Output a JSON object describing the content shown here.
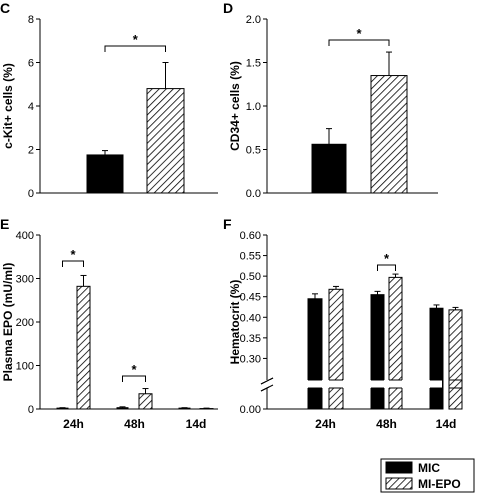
{
  "chart_data": [
    {
      "panel": "C",
      "type": "bar",
      "ylabel": "c-Kit+ cells (%)",
      "ylim": [
        0,
        8
      ],
      "yticks": [
        "0",
        "2",
        "4",
        "6",
        "8"
      ],
      "series": [
        {
          "name": "MIC",
          "values": [
            1.75
          ],
          "errors": [
            0.2
          ]
        },
        {
          "name": "MI-EPO",
          "values": [
            4.8
          ],
          "errors": [
            1.2
          ]
        }
      ],
      "significance": [
        {
          "label": "*"
        }
      ]
    },
    {
      "panel": "D",
      "type": "bar",
      "ylabel": "CD34+ cells (%)",
      "ylim": [
        0,
        2.0
      ],
      "yticks": [
        "0.0",
        "0.5",
        "1.0",
        "1.5",
        "2.0"
      ],
      "series": [
        {
          "name": "MIC",
          "values": [
            0.56
          ],
          "errors": [
            0.18
          ]
        },
        {
          "name": "MI-EPO",
          "values": [
            1.35
          ],
          "errors": [
            0.27
          ]
        }
      ],
      "significance": [
        {
          "label": "*"
        }
      ]
    },
    {
      "panel": "E",
      "type": "bar",
      "ylabel": "Plasma EPO (mU/ml)",
      "ylim": [
        0,
        400
      ],
      "yticks": [
        "0",
        "100",
        "200",
        "300",
        "400"
      ],
      "categories": [
        "24h",
        "48h",
        "14d"
      ],
      "series": [
        {
          "name": "MIC",
          "values": [
            2,
            3,
            2
          ],
          "errors": [
            1,
            2,
            1
          ]
        },
        {
          "name": "MI-EPO",
          "values": [
            282,
            35,
            1
          ],
          "errors": [
            25,
            12,
            1
          ]
        }
      ],
      "significance": [
        {
          "category": "24h",
          "label": "*"
        },
        {
          "category": "48h",
          "label": "*"
        }
      ]
    },
    {
      "panel": "F",
      "type": "bar",
      "ylabel": "Hematocrit (%)",
      "ylim": [
        0,
        0.6
      ],
      "axis_break": [
        0.0,
        0.25
      ],
      "yticks": [
        "0.00",
        "0.30",
        "0.35",
        "0.40",
        "0.45",
        "0.50",
        "0.55",
        "0.60"
      ],
      "categories": [
        "24h",
        "48h",
        "14d"
      ],
      "series": [
        {
          "name": "MIC",
          "values": [
            0.445,
            0.455,
            0.422
          ],
          "errors": [
            0.012,
            0.008,
            0.008
          ]
        },
        {
          "name": "MI-EPO",
          "values": [
            0.468,
            0.497,
            0.418
          ],
          "errors": [
            0.007,
            0.008,
            0.006
          ]
        }
      ],
      "significance": [
        {
          "category": "48h",
          "label": "*"
        }
      ]
    }
  ],
  "legend": {
    "placement": "bottom-right",
    "entries": [
      {
        "label": "MIC",
        "fill": "solid"
      },
      {
        "label": "MI-EPO",
        "fill": "hatched"
      }
    ]
  },
  "colors": {
    "ink": "#000000",
    "background": "#ffffff"
  }
}
